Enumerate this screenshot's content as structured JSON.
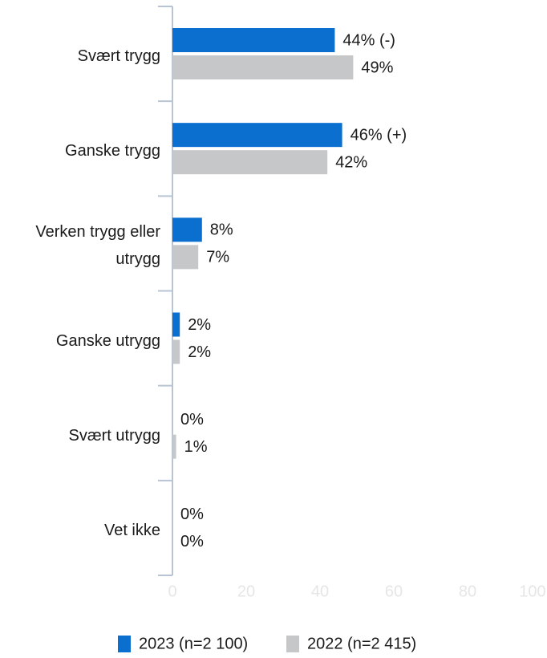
{
  "chart_data": {
    "type": "bar",
    "orientation": "horizontal",
    "categories": [
      "Svært trygg",
      "Ganske trygg",
      "Verken trygg eller utrygg",
      "Ganske utrygg",
      "Svært utrygg",
      "Vet ikke"
    ],
    "series": [
      {
        "name": "2023 (n=2 100)",
        "color": "#0a6fcf",
        "values": [
          44,
          46,
          8,
          2,
          0,
          0
        ],
        "value_labels": [
          "44% (-)",
          "46% (+)",
          "8%",
          "2%",
          "0%",
          "0%"
        ]
      },
      {
        "name": "2022 (n=2 415)",
        "color": "#c6c7c9",
        "values": [
          49,
          42,
          7,
          2,
          1,
          0
        ],
        "value_labels": [
          "49%",
          "42%",
          "7%",
          "2%",
          "1%",
          "0%"
        ]
      }
    ],
    "xlim": [
      0,
      100
    ],
    "xticks": [
      0,
      20,
      40,
      60,
      80,
      100
    ],
    "legend": "bottom"
  }
}
